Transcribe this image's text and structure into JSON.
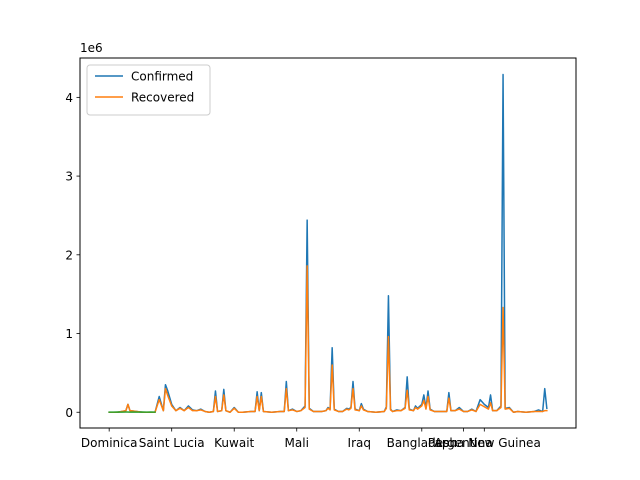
{
  "chart_data": {
    "type": "line",
    "title": "",
    "xlabel": "",
    "ylabel": "",
    "y_exponent_label": "1e6",
    "y_scale": 1000000,
    "ylim": [
      -0.2,
      4.5
    ],
    "xlim": [
      -7,
      112
    ],
    "yticks": [
      0,
      1,
      2,
      3,
      4
    ],
    "xticks": [
      {
        "pos": 0,
        "label": "Dominica"
      },
      {
        "pos": 15,
        "label": "Saint Lucia"
      },
      {
        "pos": 30,
        "label": "Kuwait"
      },
      {
        "pos": 45,
        "label": "Mali"
      },
      {
        "pos": 60,
        "label": "Iraq"
      },
      {
        "pos": 75,
        "label": "Bangladesh"
      },
      {
        "pos": 85,
        "label": "Argentina"
      },
      {
        "pos": 90,
        "label": "Papua New Guinea"
      }
    ],
    "legend_position": "upper-left",
    "series": [
      {
        "name": "Confirmed",
        "color": "#1f77b4",
        "points": [
          [
            0,
            0
          ],
          [
            2,
            0
          ],
          [
            4,
            0.02
          ],
          [
            4.5,
            0.1
          ],
          [
            5,
            0.02
          ],
          [
            8,
            0
          ],
          [
            11,
            0
          ],
          [
            12,
            0.2
          ],
          [
            13,
            0.02
          ],
          [
            13.5,
            0.35
          ],
          [
            14,
            0.28
          ],
          [
            15,
            0.1
          ],
          [
            16,
            0.02
          ],
          [
            17,
            0.06
          ],
          [
            18,
            0.02
          ],
          [
            19,
            0.08
          ],
          [
            20,
            0.03
          ],
          [
            21,
            0.02
          ],
          [
            22,
            0.04
          ],
          [
            23,
            0.01
          ],
          [
            24,
            0
          ],
          [
            25,
            0.01
          ],
          [
            25.5,
            0.27
          ],
          [
            26,
            0.01
          ],
          [
            27,
            0.02
          ],
          [
            27.5,
            0.29
          ],
          [
            28,
            0.02
          ],
          [
            29,
            0
          ],
          [
            30,
            0.06
          ],
          [
            31,
            0
          ],
          [
            32,
            0
          ],
          [
            34,
            0.01
          ],
          [
            35,
            0.01
          ],
          [
            35.5,
            0.26
          ],
          [
            36,
            0.02
          ],
          [
            36.5,
            0.25
          ],
          [
            37,
            0.01
          ],
          [
            39,
            0
          ],
          [
            41,
            0.01
          ],
          [
            42,
            0.01
          ],
          [
            42.5,
            0.39
          ],
          [
            43,
            0.02
          ],
          [
            44,
            0.04
          ],
          [
            45,
            0.01
          ],
          [
            46,
            0.02
          ],
          [
            47,
            0.08
          ],
          [
            47.5,
            2.44
          ],
          [
            48,
            0.05
          ],
          [
            49,
            0.01
          ],
          [
            51,
            0.01
          ],
          [
            52,
            0.02
          ],
          [
            52.5,
            0.06
          ],
          [
            53,
            0.04
          ],
          [
            53.5,
            0.82
          ],
          [
            54,
            0.04
          ],
          [
            55,
            0.01
          ],
          [
            56,
            0.01
          ],
          [
            57,
            0.05
          ],
          [
            57.5,
            0.04
          ],
          [
            58,
            0.06
          ],
          [
            58.5,
            0.39
          ],
          [
            59,
            0.04
          ],
          [
            60,
            0.02
          ],
          [
            60.5,
            0.11
          ],
          [
            61,
            0.04
          ],
          [
            62,
            0.01
          ],
          [
            64,
            0
          ],
          [
            66,
            0.01
          ],
          [
            66.5,
            0.07
          ],
          [
            67,
            1.48
          ],
          [
            67.5,
            0.04
          ],
          [
            68,
            0.01
          ],
          [
            69,
            0.03
          ],
          [
            70,
            0.02
          ],
          [
            71,
            0.06
          ],
          [
            71.5,
            0.45
          ],
          [
            72,
            0.04
          ],
          [
            73,
            0.02
          ],
          [
            73.5,
            0.08
          ],
          [
            74,
            0.05
          ],
          [
            75,
            0.1
          ],
          [
            75.5,
            0.22
          ],
          [
            76,
            0.05
          ],
          [
            76.5,
            0.27
          ],
          [
            77,
            0.04
          ],
          [
            78,
            0.01
          ],
          [
            80,
            0.01
          ],
          [
            81,
            0.01
          ],
          [
            81.5,
            0.25
          ],
          [
            82,
            0.02
          ],
          [
            83,
            0.02
          ],
          [
            84,
            0.06
          ],
          [
            85,
            0.01
          ],
          [
            86,
            0.01
          ],
          [
            87,
            0.04
          ],
          [
            88,
            0.01
          ],
          [
            89,
            0.16
          ],
          [
            90,
            0.1
          ],
          [
            91,
            0.06
          ],
          [
            91.5,
            0.22
          ],
          [
            92,
            0.02
          ],
          [
            93,
            0.02
          ],
          [
            94,
            0.08
          ],
          [
            94.5,
            4.29
          ],
          [
            95,
            0.05
          ],
          [
            96,
            0.06
          ],
          [
            97,
            0
          ],
          [
            98,
            0.01
          ],
          [
            100,
            0
          ],
          [
            102,
            0.01
          ],
          [
            103,
            0.03
          ],
          [
            104,
            0.01
          ],
          [
            104.5,
            0.3
          ],
          [
            105,
            0.05
          ]
        ]
      },
      {
        "name": "Recovered",
        "color": "#ff7f0e",
        "points": [
          [
            0,
            0
          ],
          [
            2,
            0
          ],
          [
            4,
            0.02
          ],
          [
            4.5,
            0.1
          ],
          [
            5,
            0.02
          ],
          [
            8,
            0
          ],
          [
            11,
            0
          ],
          [
            12,
            0.16
          ],
          [
            13,
            0.02
          ],
          [
            13.5,
            0.3
          ],
          [
            14,
            0.22
          ],
          [
            15,
            0.08
          ],
          [
            16,
            0.02
          ],
          [
            17,
            0.05
          ],
          [
            18,
            0.02
          ],
          [
            19,
            0.06
          ],
          [
            20,
            0.02
          ],
          [
            21,
            0.02
          ],
          [
            22,
            0.03
          ],
          [
            23,
            0.01
          ],
          [
            24,
            0
          ],
          [
            25,
            0.01
          ],
          [
            25.5,
            0.2
          ],
          [
            26,
            0.01
          ],
          [
            27,
            0.02
          ],
          [
            27.5,
            0.22
          ],
          [
            28,
            0.02
          ],
          [
            29,
            0
          ],
          [
            30,
            0.05
          ],
          [
            31,
            0
          ],
          [
            32,
            0
          ],
          [
            34,
            0.01
          ],
          [
            35,
            0.01
          ],
          [
            35.5,
            0.2
          ],
          [
            36,
            0.02
          ],
          [
            36.5,
            0.2
          ],
          [
            37,
            0.01
          ],
          [
            39,
            0
          ],
          [
            41,
            0.01
          ],
          [
            42,
            0.01
          ],
          [
            42.5,
            0.3
          ],
          [
            43,
            0.02
          ],
          [
            44,
            0.03
          ],
          [
            45,
            0.01
          ],
          [
            46,
            0.02
          ],
          [
            47,
            0.06
          ],
          [
            47.5,
            1.86
          ],
          [
            48,
            0.04
          ],
          [
            49,
            0.01
          ],
          [
            51,
            0.01
          ],
          [
            52,
            0.02
          ],
          [
            52.5,
            0.05
          ],
          [
            53,
            0.03
          ],
          [
            53.5,
            0.6
          ],
          [
            54,
            0.03
          ],
          [
            55,
            0.01
          ],
          [
            56,
            0.01
          ],
          [
            57,
            0.04
          ],
          [
            57.5,
            0.03
          ],
          [
            58,
            0.05
          ],
          [
            58.5,
            0.3
          ],
          [
            59,
            0.03
          ],
          [
            60,
            0.02
          ],
          [
            60.5,
            0.08
          ],
          [
            61,
            0.03
          ],
          [
            62,
            0.01
          ],
          [
            64,
            0
          ],
          [
            66,
            0.01
          ],
          [
            66.5,
            0.05
          ],
          [
            67,
            0.96
          ],
          [
            67.5,
            0.03
          ],
          [
            68,
            0.01
          ],
          [
            69,
            0.02
          ],
          [
            70,
            0.02
          ],
          [
            71,
            0.05
          ],
          [
            71.5,
            0.28
          ],
          [
            72,
            0.03
          ],
          [
            73,
            0.02
          ],
          [
            73.5,
            0.06
          ],
          [
            74,
            0.04
          ],
          [
            75,
            0.08
          ],
          [
            75.5,
            0.15
          ],
          [
            76,
            0.04
          ],
          [
            76.5,
            0.2
          ],
          [
            77,
            0.03
          ],
          [
            78,
            0.01
          ],
          [
            80,
            0.01
          ],
          [
            81,
            0.01
          ],
          [
            81.5,
            0.18
          ],
          [
            82,
            0.02
          ],
          [
            83,
            0.02
          ],
          [
            84,
            0.04
          ],
          [
            85,
            0.01
          ],
          [
            86,
            0.01
          ],
          [
            87,
            0.03
          ],
          [
            88,
            0.01
          ],
          [
            89,
            0.1
          ],
          [
            90,
            0.07
          ],
          [
            91,
            0.04
          ],
          [
            91.5,
            0.12
          ],
          [
            92,
            0.02
          ],
          [
            93,
            0.02
          ],
          [
            94,
            0.06
          ],
          [
            94.5,
            1.33
          ],
          [
            95,
            0.04
          ],
          [
            96,
            0.05
          ],
          [
            97,
            0
          ],
          [
            98,
            0.01
          ],
          [
            100,
            0
          ],
          [
            102,
            0.01
          ],
          [
            103,
            0.01
          ],
          [
            104,
            0.01
          ],
          [
            104.5,
            0.02
          ],
          [
            105,
            0.02
          ]
        ]
      },
      {
        "name": "",
        "color": "#2ca02c",
        "points": [
          [
            0,
            0.002
          ],
          [
            1,
            0.001
          ],
          [
            2,
            0.003
          ],
          [
            3,
            0.002
          ],
          [
            4,
            0.004
          ],
          [
            5,
            0.002
          ],
          [
            6,
            0.003
          ],
          [
            7,
            0.002
          ],
          [
            8,
            0.004
          ],
          [
            9,
            0.002
          ],
          [
            10,
            0.003
          ],
          [
            11,
            0.002
          ]
        ]
      }
    ]
  }
}
